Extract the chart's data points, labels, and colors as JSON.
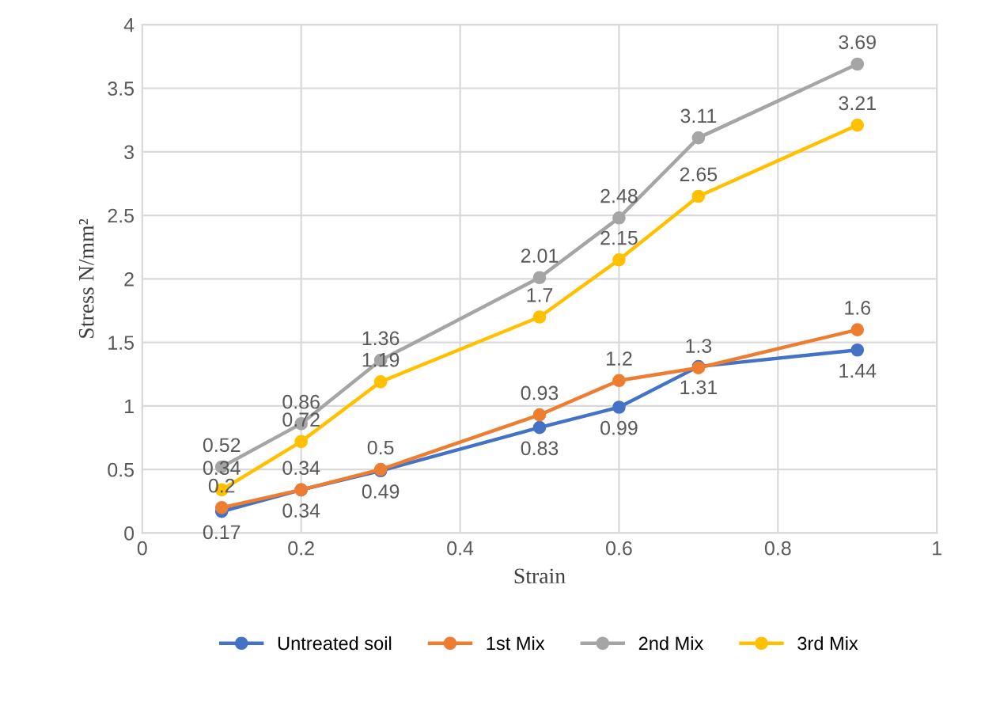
{
  "chart_data": {
    "type": "line",
    "xlabel": "Strain",
    "ylabel": "Stress N/mm²",
    "x": [
      0.1,
      0.2,
      0.3,
      0.5,
      0.6,
      0.7,
      0.9
    ],
    "series": [
      {
        "name": "Untreated soil",
        "color": "#4472c4",
        "values": [
          0.17,
          0.34,
          0.49,
          0.83,
          0.99,
          1.31,
          1.44
        ]
      },
      {
        "name": "1st Mix",
        "color": "#ed7d31",
        "values": [
          0.2,
          0.34,
          0.5,
          0.93,
          1.2,
          1.3,
          1.6
        ]
      },
      {
        "name": "2nd Mix",
        "color": "#a5a5a5",
        "values": [
          0.52,
          0.86,
          1.36,
          2.01,
          2.48,
          3.11,
          3.69
        ]
      },
      {
        "name": "3rd Mix",
        "color": "#ffc000",
        "values": [
          0.34,
          0.72,
          1.19,
          1.7,
          2.15,
          2.65,
          3.21
        ]
      }
    ],
    "xlim": [
      0,
      1
    ],
    "xticks": [
      0,
      0.2,
      0.4,
      0.6,
      0.8,
      1
    ],
    "ylim": [
      0,
      4
    ],
    "yticks": [
      0,
      0.5,
      1,
      1.5,
      2,
      2.5,
      3,
      3.5,
      4
    ],
    "grid": true,
    "legend": "bottom",
    "marker": "circle",
    "line_style": "solid",
    "data_labels": true
  }
}
